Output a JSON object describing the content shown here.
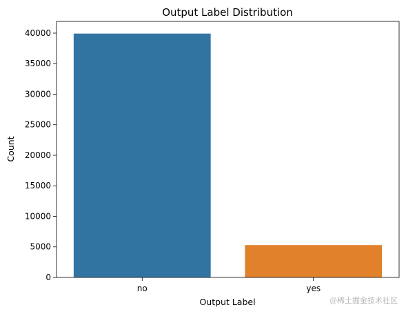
{
  "chart_data": {
    "type": "bar",
    "title": "Output Label Distribution",
    "xlabel": "Output Label",
    "ylabel": "Count",
    "categories": [
      "no",
      "yes"
    ],
    "values": [
      39922,
      5289
    ],
    "colors": [
      "#3274a1",
      "#e1812c"
    ],
    "ylim": [
      0,
      41920
    ],
    "yticks": [
      0,
      5000,
      10000,
      15000,
      20000,
      25000,
      30000,
      35000,
      40000
    ],
    "grid": false,
    "legend": "none"
  },
  "watermark": "@稀土掘金技术社区"
}
